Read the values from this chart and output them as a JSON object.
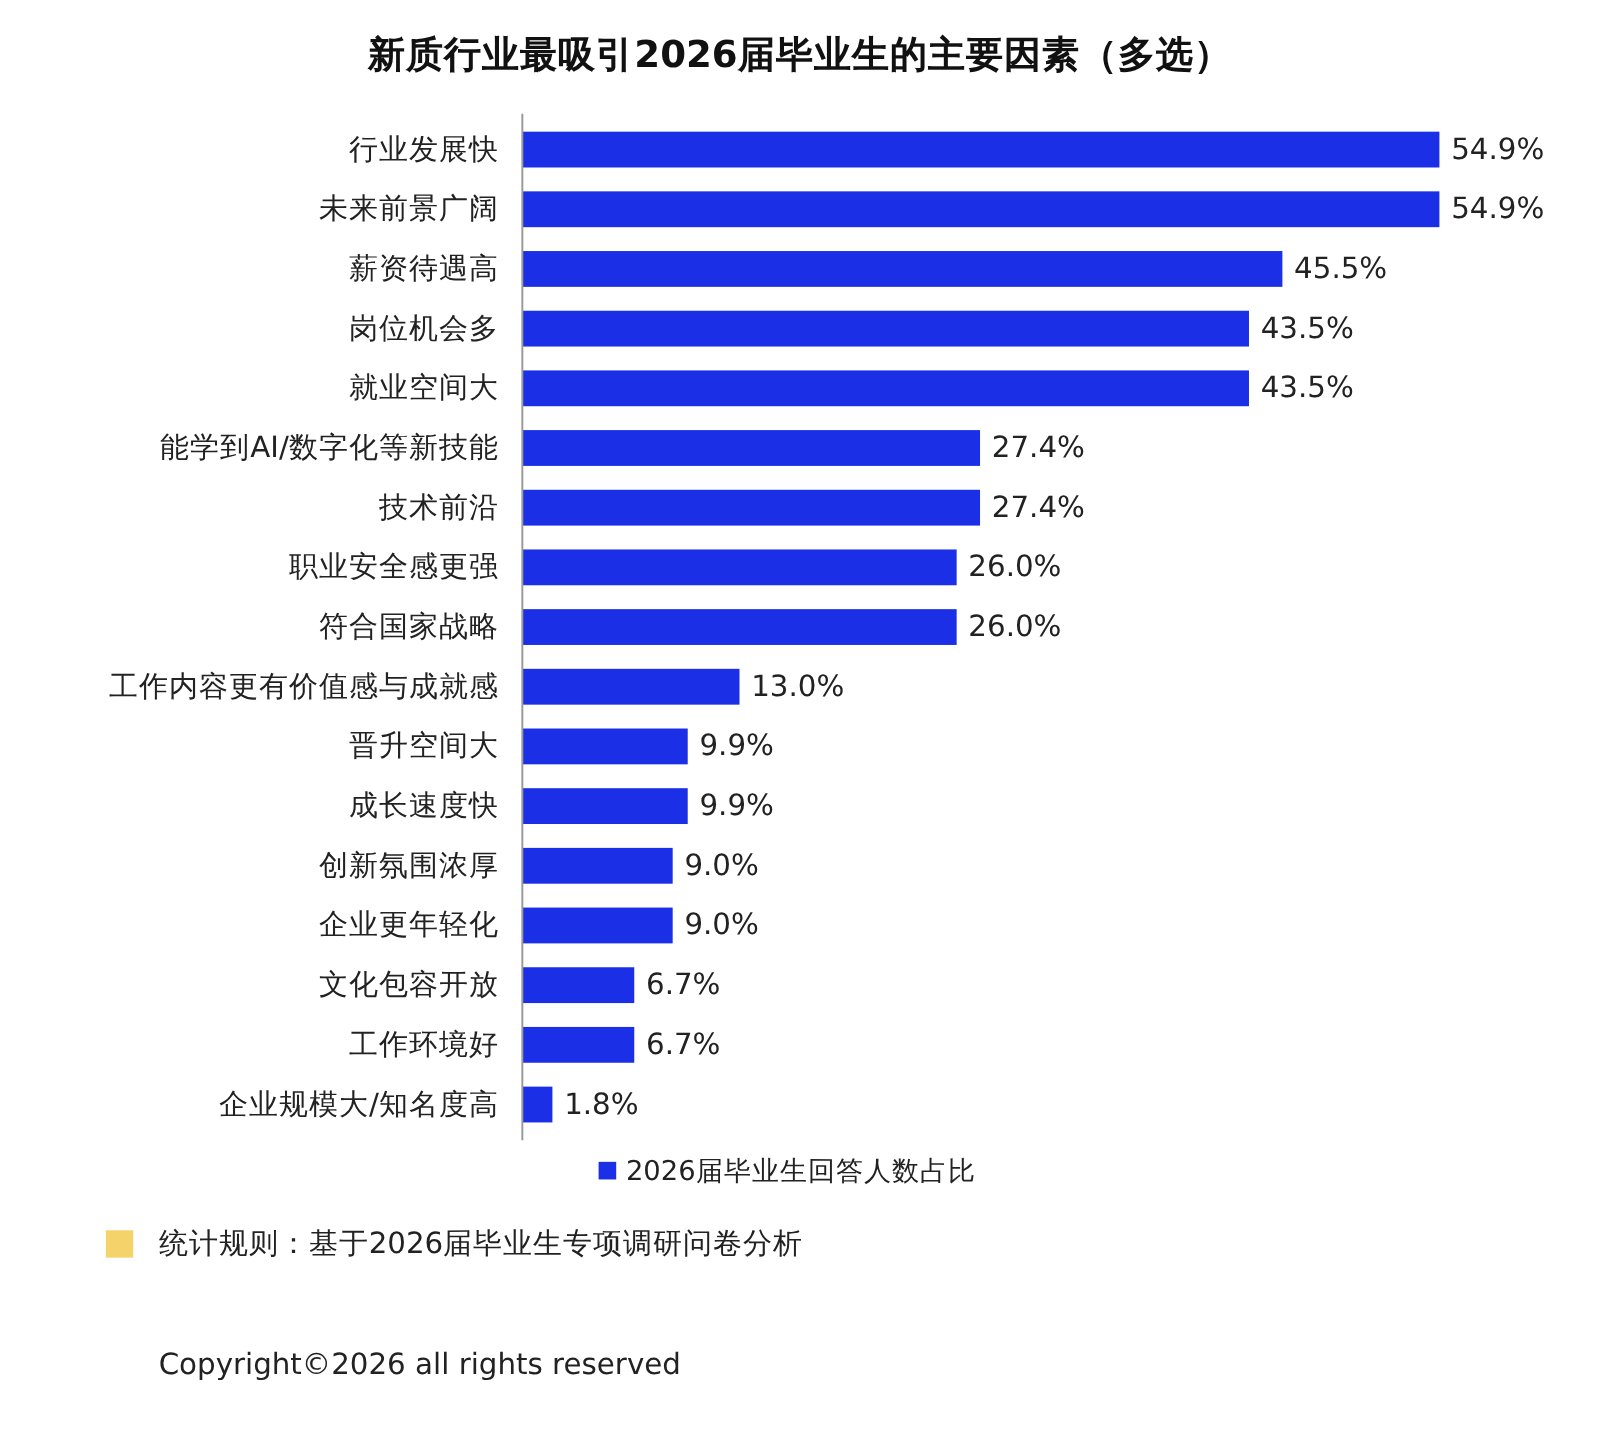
{
  "chart_data": {
    "type": "bar",
    "orientation": "horizontal",
    "title": "新质行业最吸引2026届毕业生的主要因素（多选）",
    "categories": [
      "行业发展快",
      "未来前景广阔",
      "薪资待遇高",
      "岗位机会多",
      "就业空间大",
      "能学到AI/数字化等新技能",
      "技术前沿",
      "职业安全感更强",
      "符合国家战略",
      "工作内容更有价值感与成就感",
      "晋升空间大",
      "成长速度快",
      "创新氛围浓厚",
      "企业更年轻化",
      "文化包容开放",
      "工作环境好",
      "企业规模大/知名度高"
    ],
    "series": [
      {
        "name": "2026届毕业生回答人数占比",
        "color": "#1a2fe6",
        "values": [
          54.9,
          54.9,
          45.5,
          43.5,
          43.5,
          27.4,
          27.4,
          26.0,
          26.0,
          13.0,
          9.9,
          9.9,
          9.0,
          9.0,
          6.7,
          6.7,
          1.8
        ],
        "value_labels": [
          "54.9%",
          "54.9%",
          "45.5%",
          "43.5%",
          "43.5%",
          "27.4%",
          "27.4%",
          "26.0%",
          "26.0%",
          "13.0%",
          "9.9%",
          "9.9%",
          "9.0%",
          "9.0%",
          "6.7%",
          "6.7%",
          "1.8%"
        ]
      }
    ],
    "legend": "bottom",
    "annotations": [
      "统计规则：基于2026届毕业生专项调研问卷分析",
      "Copyright©2026 all rights reserved"
    ]
  }
}
